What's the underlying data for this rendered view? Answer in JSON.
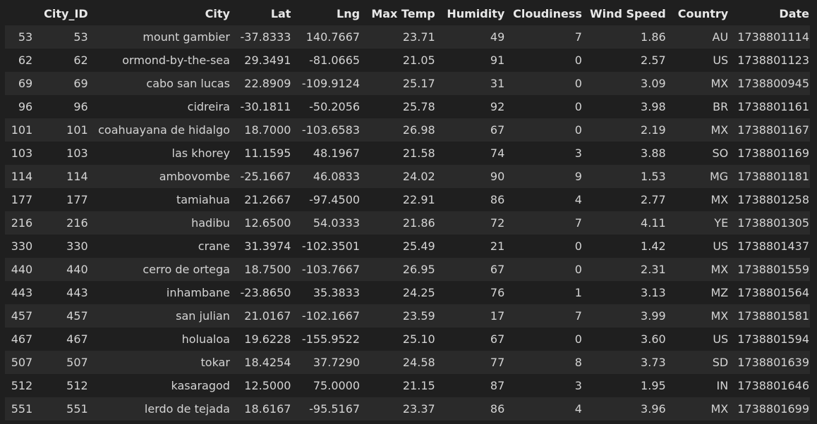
{
  "columns": [
    "",
    "City_ID",
    "City",
    "Lat",
    "Lng",
    "Max Temp",
    "Humidity",
    "Cloudiness",
    "Wind Speed",
    "Country",
    "Date"
  ],
  "rows": [
    [
      "53",
      "53",
      "mount gambier",
      "-37.8333",
      "140.7667",
      "23.71",
      "49",
      "7",
      "1.86",
      "AU",
      "1738801114"
    ],
    [
      "62",
      "62",
      "ormond-by-the-sea",
      "29.3491",
      "-81.0665",
      "21.05",
      "91",
      "0",
      "2.57",
      "US",
      "1738801123"
    ],
    [
      "69",
      "69",
      "cabo san lucas",
      "22.8909",
      "-109.9124",
      "25.17",
      "31",
      "0",
      "3.09",
      "MX",
      "1738800945"
    ],
    [
      "96",
      "96",
      "cidreira",
      "-30.1811",
      "-50.2056",
      "25.78",
      "92",
      "0",
      "3.98",
      "BR",
      "1738801161"
    ],
    [
      "101",
      "101",
      "coahuayana de hidalgo",
      "18.7000",
      "-103.6583",
      "26.98",
      "67",
      "0",
      "2.19",
      "MX",
      "1738801167"
    ],
    [
      "103",
      "103",
      "las khorey",
      "11.1595",
      "48.1967",
      "21.58",
      "74",
      "3",
      "3.88",
      "SO",
      "1738801169"
    ],
    [
      "114",
      "114",
      "ambovombe",
      "-25.1667",
      "46.0833",
      "24.02",
      "90",
      "9",
      "1.53",
      "MG",
      "1738801181"
    ],
    [
      "177",
      "177",
      "tamiahua",
      "21.2667",
      "-97.4500",
      "22.91",
      "86",
      "4",
      "2.77",
      "MX",
      "1738801258"
    ],
    [
      "216",
      "216",
      "hadibu",
      "12.6500",
      "54.0333",
      "21.86",
      "72",
      "7",
      "4.11",
      "YE",
      "1738801305"
    ],
    [
      "330",
      "330",
      "crane",
      "31.3974",
      "-102.3501",
      "25.49",
      "21",
      "0",
      "1.42",
      "US",
      "1738801437"
    ],
    [
      "440",
      "440",
      "cerro de ortega",
      "18.7500",
      "-103.7667",
      "26.95",
      "67",
      "0",
      "2.31",
      "MX",
      "1738801559"
    ],
    [
      "443",
      "443",
      "inhambane",
      "-23.8650",
      "35.3833",
      "24.25",
      "76",
      "1",
      "3.13",
      "MZ",
      "1738801564"
    ],
    [
      "457",
      "457",
      "san julian",
      "21.0167",
      "-102.1667",
      "23.59",
      "17",
      "7",
      "3.99",
      "MX",
      "1738801581"
    ],
    [
      "467",
      "467",
      "holualoa",
      "19.6228",
      "-155.9522",
      "25.10",
      "67",
      "0",
      "3.60",
      "US",
      "1738801594"
    ],
    [
      "507",
      "507",
      "tokar",
      "18.4254",
      "37.7290",
      "24.58",
      "77",
      "8",
      "3.73",
      "SD",
      "1738801639"
    ],
    [
      "512",
      "512",
      "kasaragod",
      "12.5000",
      "75.0000",
      "21.15",
      "87",
      "3",
      "1.95",
      "IN",
      "1738801646"
    ],
    [
      "551",
      "551",
      "lerdo de tejada",
      "18.6167",
      "-95.5167",
      "23.37",
      "86",
      "4",
      "3.96",
      "MX",
      "1738801699"
    ]
  ],
  "colors": {
    "background": "#1f1f1f",
    "row_stripe": "#2a2a2a",
    "text": "#d4d4d4",
    "header_text": "#e8e8e8"
  }
}
